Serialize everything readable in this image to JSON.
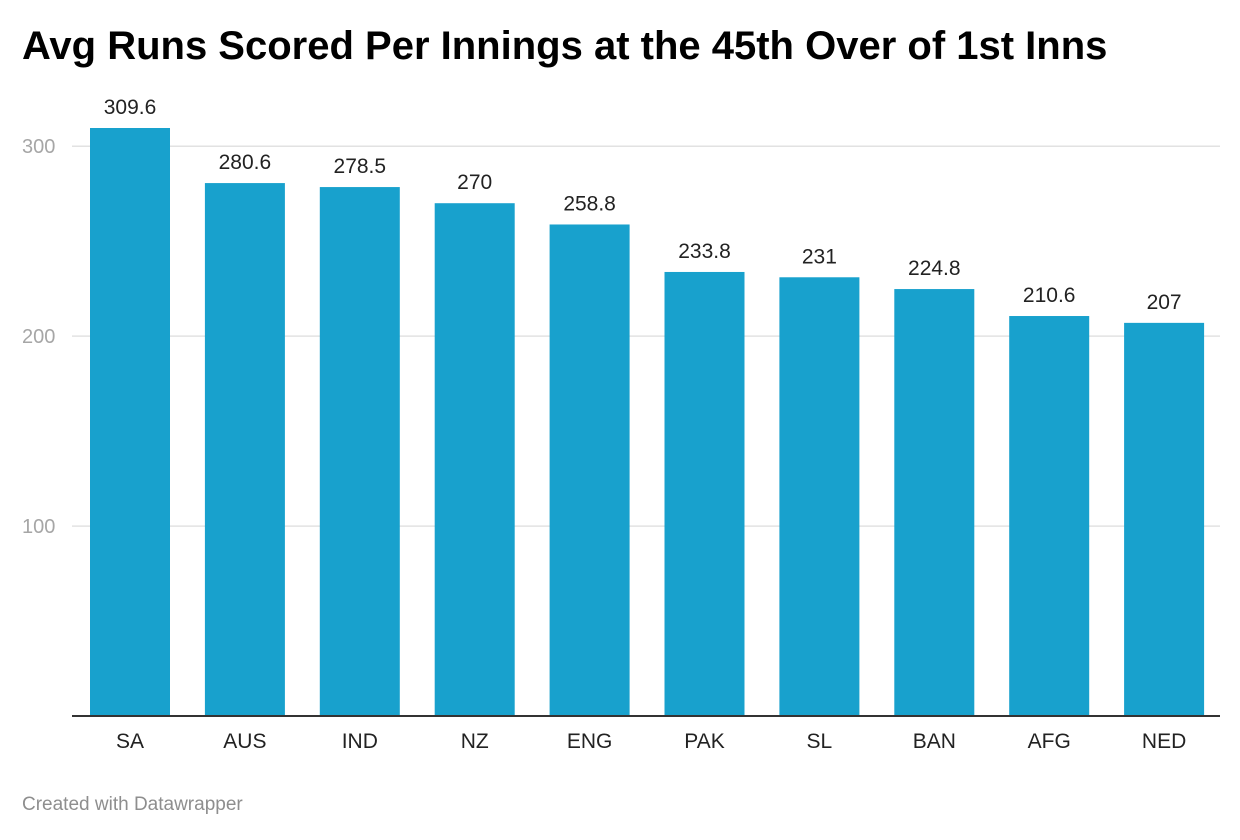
{
  "title": "Avg Runs Scored Per Innings at the 45th Over of 1st Inns",
  "footer": "Created with Datawrapper",
  "colors": {
    "bar": "#18a1cd",
    "grid": "#e2e2e2",
    "axis": "#333333",
    "tick_label": "#a6a6a6"
  },
  "chart_data": {
    "type": "bar",
    "title": "Avg Runs Scored Per Innings at the 45th Over of 1st Inns",
    "categories": [
      "SA",
      "AUS",
      "IND",
      "NZ",
      "ENG",
      "PAK",
      "SL",
      "BAN",
      "AFG",
      "NED"
    ],
    "values": [
      309.6,
      280.6,
      278.5,
      270,
      258.8,
      233.8,
      231,
      224.8,
      210.6,
      207
    ],
    "value_labels": [
      "309.6",
      "280.6",
      "278.5",
      "270",
      "258.8",
      "233.8",
      "231",
      "224.8",
      "210.6",
      "207"
    ],
    "yticks": [
      100,
      200,
      300
    ],
    "ylim": [
      0,
      309.6
    ],
    "xlabel": "",
    "ylabel": "",
    "grid": true,
    "legend": "none"
  }
}
